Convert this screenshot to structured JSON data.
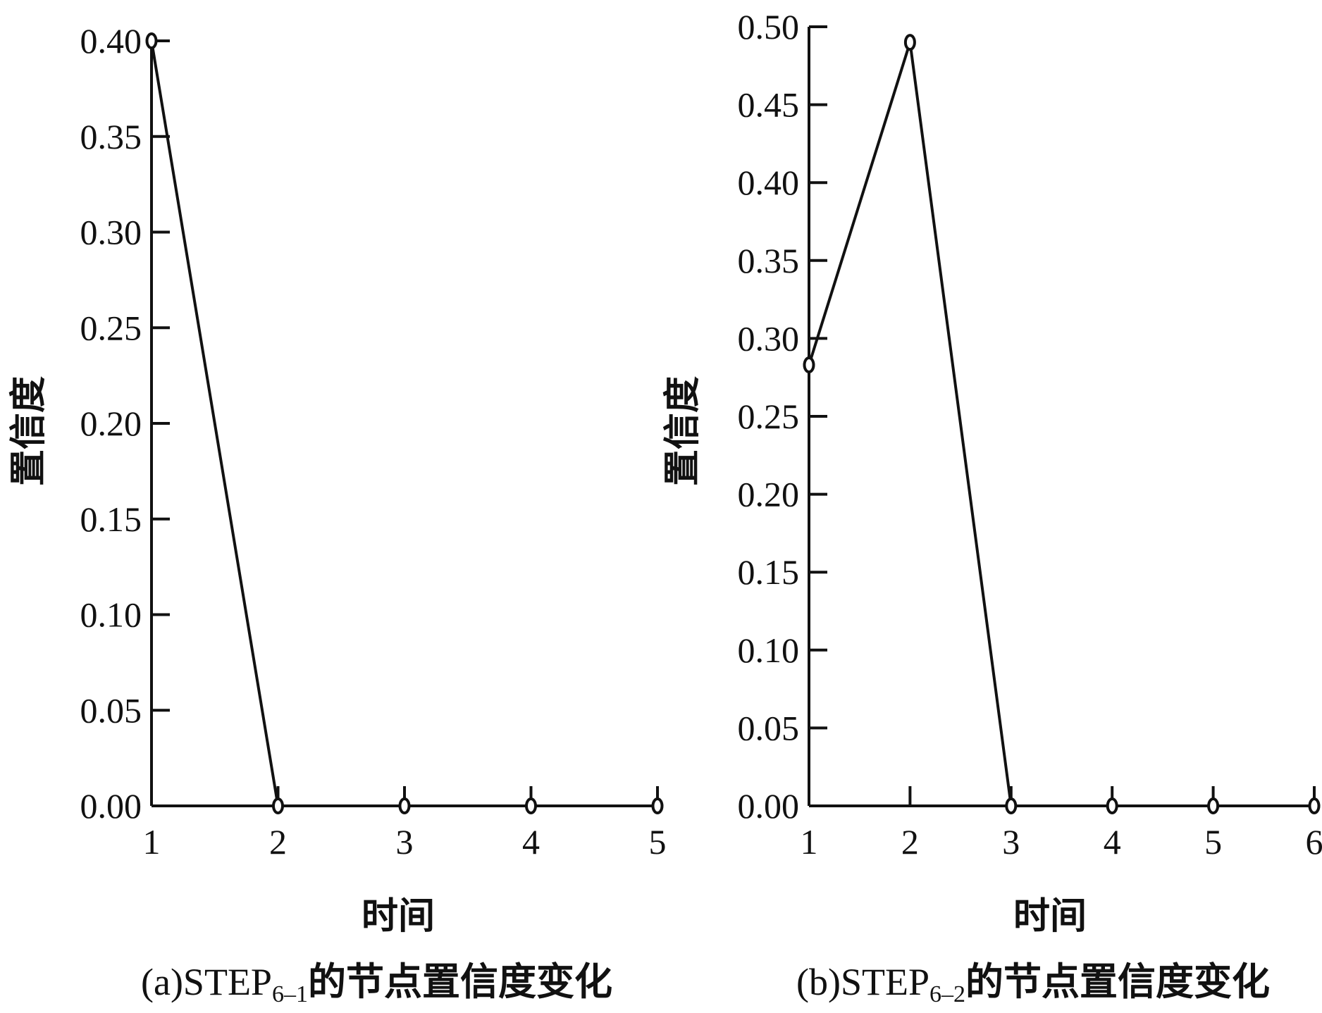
{
  "chart_data": [
    {
      "type": "line",
      "title": "",
      "caption_prefix": "(a)STEP",
      "caption_subscript": "6–1",
      "caption_suffix": "的节点置信度变化",
      "xlabel": "时间",
      "ylabel": "置信度",
      "x": [
        1,
        2,
        3,
        4,
        5
      ],
      "xticks": [
        "1",
        "2",
        "3",
        "4",
        "5"
      ],
      "ylim": [
        0,
        0.4
      ],
      "yticks": [
        "0.00",
        "0.05",
        "0.10",
        "0.15",
        "0.20",
        "0.25",
        "0.30",
        "0.35",
        "0.40"
      ],
      "series": [
        {
          "values": [
            0.4,
            0.0,
            0.0,
            0.0,
            0.0
          ]
        }
      ],
      "marker": "circle",
      "line_color": "#111111",
      "grid": false
    },
    {
      "type": "line",
      "title": "",
      "caption_prefix": "(b)STEP",
      "caption_subscript": "6–2",
      "caption_suffix": "的节点置信度变化",
      "xlabel": "时间",
      "ylabel": "置信度",
      "x": [
        1,
        2,
        3,
        4,
        5,
        6
      ],
      "xticks": [
        "1",
        "2",
        "3",
        "4",
        "5",
        "6"
      ],
      "ylim": [
        0,
        0.5
      ],
      "yticks": [
        "0.00",
        "0.05",
        "0.10",
        "0.15",
        "0.20",
        "0.25",
        "0.30",
        "0.35",
        "0.40",
        "0.45",
        "0.50"
      ],
      "series": [
        {
          "values": [
            0.283,
            0.49,
            0.0,
            0.0,
            0.0,
            0.0
          ]
        }
      ],
      "marker": "circle",
      "line_color": "#111111",
      "grid": false
    }
  ]
}
